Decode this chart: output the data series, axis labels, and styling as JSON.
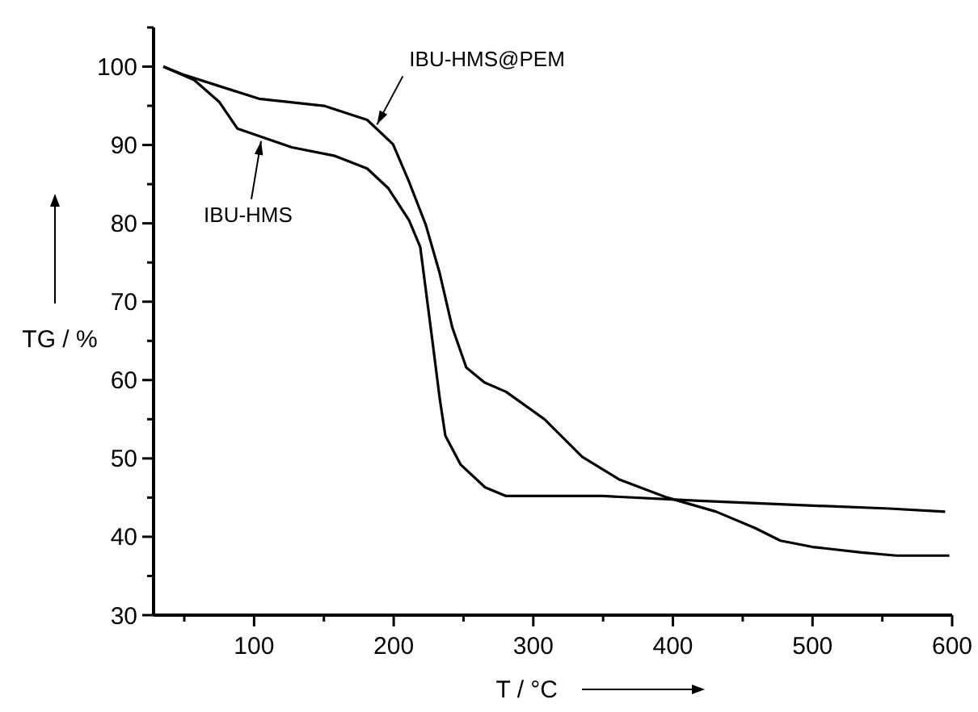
{
  "chart_data": {
    "type": "line",
    "xlabel": "T / °C",
    "ylabel": "TG / %",
    "xlim": [
      28,
      600
    ],
    "ylim": [
      30,
      105
    ],
    "xticks": [
      {
        "value": 50,
        "label": null
      },
      100,
      {
        "value": 150,
        "label": null
      },
      200,
      {
        "value": 250,
        "label": null
      },
      300,
      {
        "value": 350,
        "label": null
      },
      400,
      {
        "value": 450,
        "label": null
      },
      500,
      {
        "value": 550,
        "label": null
      },
      600
    ],
    "yticks": [
      30,
      {
        "value": 35,
        "label": null
      },
      40,
      {
        "value": 45,
        "label": null
      },
      50,
      {
        "value": 55,
        "label": null
      },
      60,
      {
        "value": 65,
        "label": null
      },
      70,
      {
        "value": 75,
        "label": null
      },
      80,
      {
        "value": 85,
        "label": null
      },
      90,
      {
        "value": 95,
        "label": null
      },
      100,
      {
        "value": 105,
        "label": null
      }
    ],
    "grid": false,
    "marker": "none",
    "line_style": "solid",
    "series": [
      {
        "color": "#000000",
        "x": [
          35,
          49,
          70,
          103.5,
          150,
          181,
          199.5,
          211,
          223,
          233,
          242,
          252,
          265,
          280.5,
          308,
          335,
          361.6,
          396,
          431,
          459,
          477,
          500,
          535,
          560,
          598
        ],
        "values": [
          100,
          99,
          97.8,
          95.9,
          95,
          93.2,
          90.1,
          85.3,
          79.8,
          73.6,
          66.7,
          61.6,
          59.7,
          58.5,
          55,
          50.2,
          47.3,
          45,
          43.2,
          41.1,
          39.5,
          38.7,
          38,
          37.6,
          37.6
        ]
      },
      {
        "color": "#000000",
        "x": [
          35,
          57,
          75,
          88,
          127,
          158,
          181,
          196,
          211,
          219,
          227,
          233,
          237,
          248,
          265.5,
          280.5,
          350,
          419,
          497,
          555,
          595
        ],
        "values": [
          100,
          98.3,
          95.5,
          92.1,
          89.7,
          88.6,
          87,
          84.5,
          80.4,
          77,
          66,
          57.6,
          52.9,
          49.2,
          46.3,
          45.2,
          45.2,
          44.6,
          44,
          43.6,
          43.2
        ]
      }
    ],
    "annotations": [
      {
        "text": "IBU-HMS@PEM",
        "x": 188,
        "y": 92.6
      },
      {
        "text": "IBU-HMS",
        "x": 105,
        "y": 90.5
      }
    ]
  }
}
